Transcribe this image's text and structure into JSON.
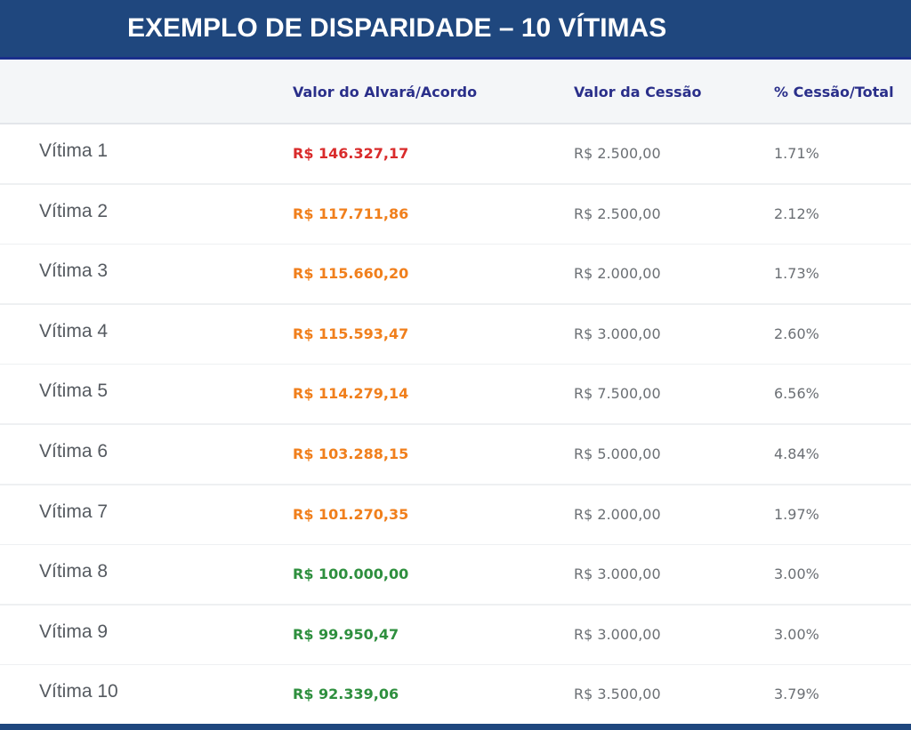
{
  "title": "EXEMPLO DE DISPARIDADE – 10 VÍTIMAS",
  "columns": {
    "name": "",
    "valor_alvara": "Valor do Alvará/Acordo",
    "valor_cessao": "Valor da Cessão",
    "pct": "% Cessão/Total"
  },
  "colors": {
    "header_bg": "#1f477e",
    "column_header_text": "#2a2f8a",
    "value_red": "#d92b2b",
    "value_orange": "#f07f1c",
    "value_green": "#2e8f3e"
  },
  "rows": [
    {
      "name": "Vítima 1",
      "valor": "R$ 146.327,17",
      "level": "red",
      "cessao": "R$ 2.500,00",
      "pct": "1.71%"
    },
    {
      "name": "Vítima 2",
      "valor": "R$ 117.711,86",
      "level": "orange",
      "cessao": "R$ 2.500,00",
      "pct": "2.12%"
    },
    {
      "name": "Vítima 3",
      "valor": "R$ 115.660,20",
      "level": "orange",
      "cessao": "R$ 2.000,00",
      "pct": "1.73%"
    },
    {
      "name": "Vítima 4",
      "valor": "R$ 115.593,47",
      "level": "orange",
      "cessao": "R$ 3.000,00",
      "pct": "2.60%"
    },
    {
      "name": "Vítima 5",
      "valor": "R$ 114.279,14",
      "level": "orange",
      "cessao": "R$ 7.500,00",
      "pct": "6.56%"
    },
    {
      "name": "Vítima 6",
      "valor": "R$ 103.288,15",
      "level": "orange",
      "cessao": "R$ 5.000,00",
      "pct": "4.84%"
    },
    {
      "name": "Vítima 7",
      "valor": "R$ 101.270,35",
      "level": "orange",
      "cessao": "R$ 2.000,00",
      "pct": "1.97%"
    },
    {
      "name": "Vítima 8",
      "valor": "R$ 100.000,00",
      "level": "green",
      "cessao": "R$ 3.000,00",
      "pct": "3.00%"
    },
    {
      "name": "Vítima 9",
      "valor": "R$ 99.950,47",
      "level": "green",
      "cessao": "R$ 3.000,00",
      "pct": "3.00%"
    },
    {
      "name": "Vítima 10",
      "valor": "R$ 92.339,06",
      "level": "green",
      "cessao": "R$ 3.500,00",
      "pct": "3.79%"
    }
  ]
}
